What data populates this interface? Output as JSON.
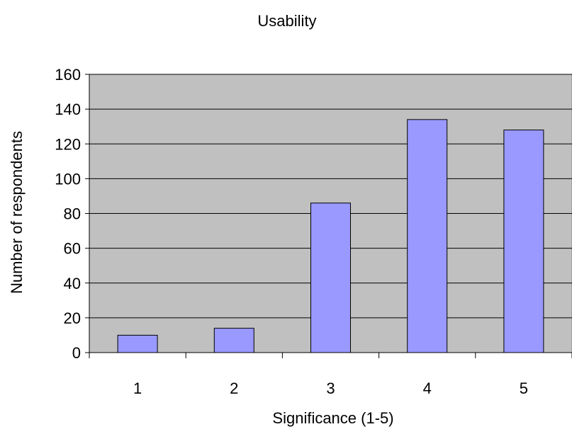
{
  "chart_data": {
    "type": "bar",
    "title": "Usability",
    "xlabel": "Significance (1-5)",
    "ylabel": "Number of respondents",
    "categories": [
      "1",
      "2",
      "3",
      "4",
      "5"
    ],
    "values": [
      10,
      14,
      86,
      134,
      128
    ],
    "ylim": [
      0,
      160
    ],
    "yticks": [
      "0",
      "20",
      "40",
      "60",
      "80",
      "100",
      "120",
      "140",
      "160"
    ],
    "grid": true,
    "legend": "none",
    "colors": {
      "bar_fill": "#9999FF",
      "bar_stroke": "#000000",
      "plot_background": "#C0C0C0",
      "gridline": "#000000"
    }
  }
}
